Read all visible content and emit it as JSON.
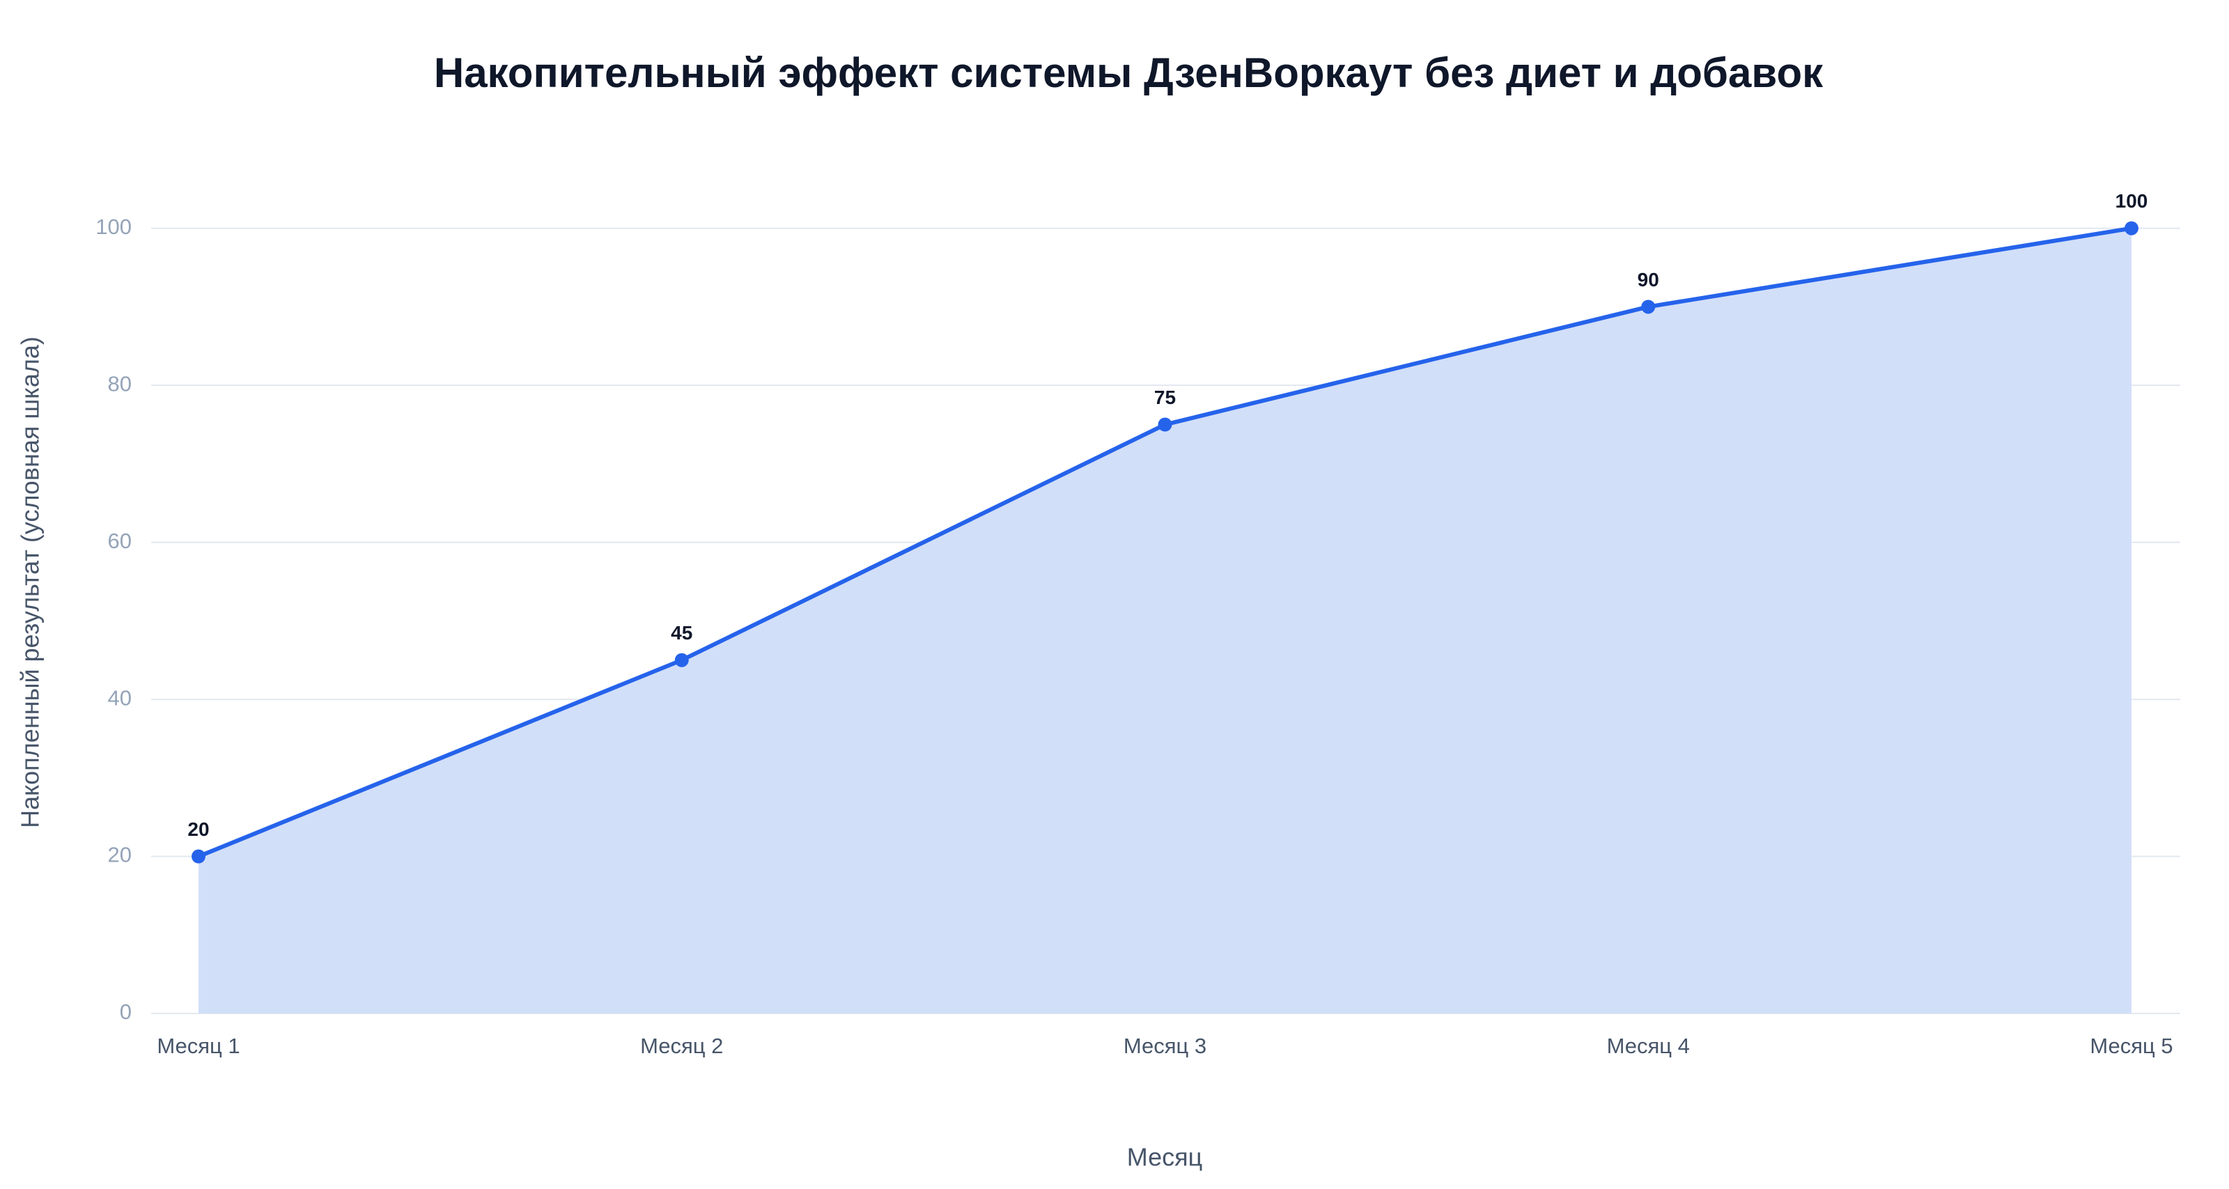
{
  "chart_data": {
    "type": "area",
    "title": "Накопительный эффект системы ДзенВоркаут без диет и добавок",
    "x_label": "Месяц",
    "y_label": "Накопленный результат (условная шкала)",
    "categories": [
      "Месяц 1",
      "Месяц 2",
      "Месяц 3",
      "Месяц 4",
      "Месяц 5"
    ],
    "values": [
      20,
      45,
      75,
      90,
      100
    ],
    "color": "#2563eb",
    "fill_color": "#d2dff9",
    "ylim": [
      0,
      110
    ],
    "yticks": [
      0,
      20,
      40,
      60,
      80,
      100
    ],
    "grid": true
  }
}
